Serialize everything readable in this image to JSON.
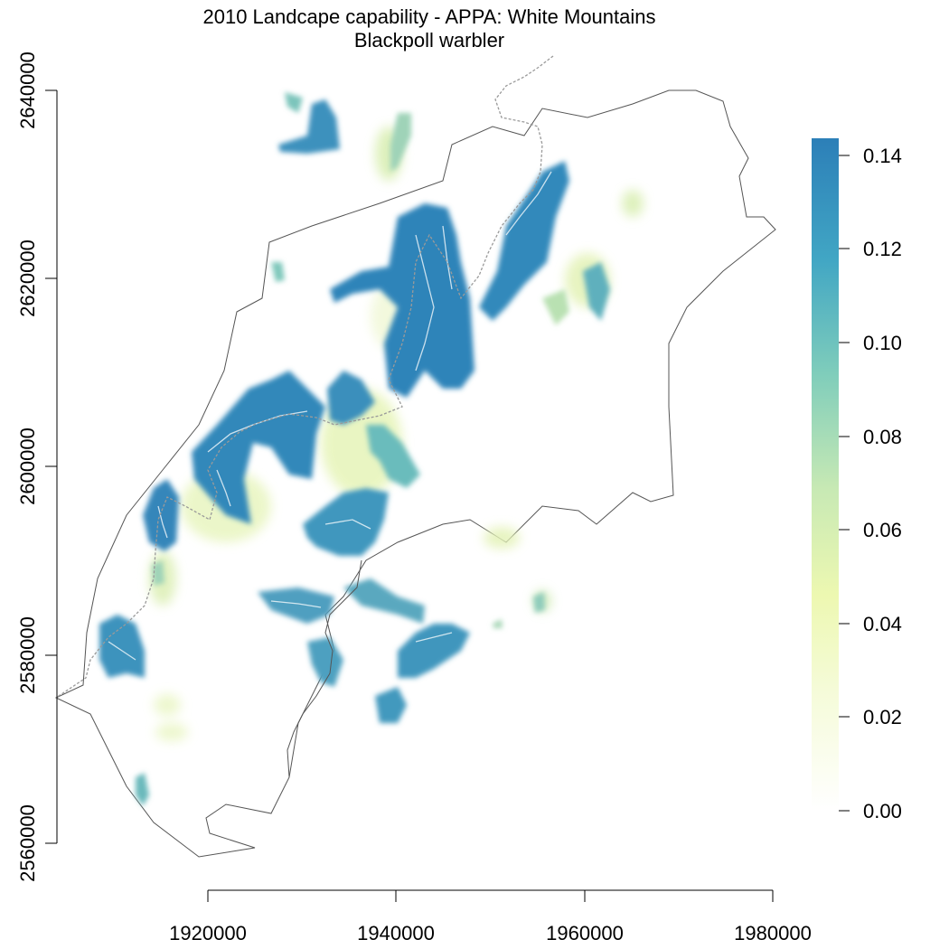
{
  "title": {
    "line1": "2010 Landcape capability - APPA: White Mountains",
    "line2": "Blackpoll warbler"
  },
  "axes": {
    "x_ticks": [
      "1920000",
      "1940000",
      "1960000",
      "1980000"
    ],
    "y_ticks": [
      "2560000",
      "2580000",
      "2600000",
      "2620000",
      "2640000"
    ]
  },
  "legend": {
    "ticks": [
      "0.00",
      "0.02",
      "0.04",
      "0.06",
      "0.08",
      "0.10",
      "0.12",
      "0.14"
    ],
    "colors": [
      "#ffffff",
      "#f7fcd6",
      "#edf8b1",
      "#c7e9b4",
      "#7fcdbb",
      "#41b6c4",
      "#2c7fb8"
    ]
  },
  "colors": {
    "high": "#2c7fb8",
    "mid": "#5fb0bd",
    "low": "#d5eeb0",
    "boundary": "#555555",
    "trail": "#888888"
  }
}
